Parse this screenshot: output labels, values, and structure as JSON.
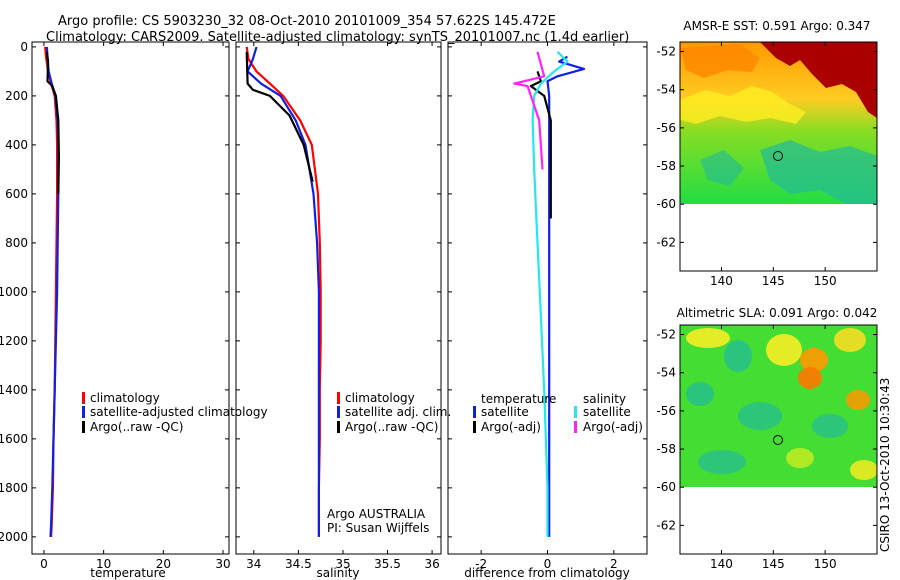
{
  "figure": {
    "title_line1": "Argo profile: CS 5903230_32 08-Oct-2010 20101009_354 57.622S 145.472E",
    "title_line2": "Climatology: CARS2009. Satellite-adjusted climatology: synTS_20101007.nc (1.4d earlier)",
    "side_stamp": "CSIRO 13-Oct-2010 10:30:43",
    "colors": {
      "red": "#ff0000",
      "blue": "#1020e0",
      "black": "#000000",
      "cyan": "#22e8ee",
      "magenta": "#ff22ff",
      "map_dark": "#aa0000",
      "map_orange": "#ff9900",
      "map_yellow": "#ffee22",
      "map_green": "#22dd44",
      "map_teal": "#22bb99"
    }
  },
  "chart_data": [
    {
      "type": "line",
      "id": "temperature",
      "xlabel": "temperature",
      "ylabel": "",
      "xlim": [
        -2,
        31
      ],
      "ylim": [
        2070,
        -20
      ],
      "xticks": [
        0,
        10,
        20,
        30
      ],
      "yticks": [
        0,
        200,
        400,
        600,
        800,
        1000,
        1200,
        1400,
        1600,
        1800,
        2000
      ],
      "series": [
        {
          "name": "climatology",
          "color": "#ff0000",
          "x": [
            0.2,
            0.4,
            0.7,
            1.2,
            1.8,
            2.1,
            2.2,
            2.2,
            2.1,
            2.0,
            1.9,
            1.8,
            1.6,
            1.5,
            1.3,
            1.2
          ],
          "y": [
            0,
            50,
            100,
            150,
            200,
            300,
            400,
            600,
            800,
            1000,
            1200,
            1400,
            1600,
            1800,
            1950,
            2000
          ]
        },
        {
          "name": "satellite-adjusted climatology",
          "color": "#1020e0",
          "x": [
            0.5,
            0.6,
            0.8,
            1.3,
            1.9,
            2.3,
            2.4,
            2.4,
            2.3,
            2.2,
            2.0,
            1.8,
            1.6,
            1.4,
            1.2,
            1.1
          ],
          "y": [
            0,
            50,
            100,
            150,
            200,
            300,
            400,
            600,
            800,
            1000,
            1200,
            1400,
            1600,
            1800,
            1950,
            2000
          ]
        },
        {
          "name": "Argo(..raw -QC)",
          "color": "#000000",
          "x": [
            0.5,
            0.7,
            0.6,
            1.0,
            1.4,
            2.0,
            2.4,
            2.5,
            2.4
          ],
          "y": [
            20,
            60,
            140,
            150,
            160,
            200,
            300,
            450,
            600
          ]
        }
      ],
      "legend": {
        "position": "lower-right",
        "entries": [
          "climatology",
          "satellite-adjusted climatology",
          "Argo(..raw -QC)"
        ]
      }
    },
    {
      "type": "line",
      "id": "salinity",
      "xlabel": "salinity",
      "ylabel": "",
      "xlim": [
        33.8,
        36.1
      ],
      "ylim": [
        2070,
        -20
      ],
      "xticks": [
        34,
        34.5,
        35,
        35.5,
        36
      ],
      "xticklabels": [
        "34",
        "34.5",
        "35",
        "35.5",
        "36"
      ],
      "series": [
        {
          "name": "climatology",
          "color": "#ff0000",
          "x": [
            33.92,
            33.94,
            34.03,
            34.18,
            34.33,
            34.52,
            34.65,
            34.72,
            34.74,
            34.75,
            34.75,
            34.74,
            34.74,
            34.73,
            34.73,
            34.73
          ],
          "y": [
            0,
            50,
            100,
            150,
            200,
            300,
            400,
            600,
            800,
            1000,
            1200,
            1400,
            1600,
            1800,
            1950,
            2000
          ]
        },
        {
          "name": "satellite adj. clim.",
          "color": "#1020e0",
          "x": [
            34.03,
            33.99,
            33.93,
            34.08,
            34.3,
            34.47,
            34.58,
            34.67,
            34.71,
            34.73,
            34.73,
            34.73,
            34.73,
            34.73,
            34.73,
            34.73
          ],
          "y": [
            0,
            50,
            100,
            150,
            200,
            300,
            400,
            600,
            800,
            1000,
            1200,
            1400,
            1600,
            1800,
            1950,
            2000
          ]
        },
        {
          "name": "Argo(..raw -QC)",
          "color": "#000000",
          "x": [
            33.92,
            33.93,
            33.99,
            34.18,
            34.4,
            34.56,
            34.66
          ],
          "y": [
            20,
            150,
            175,
            200,
            280,
            400,
            550
          ]
        }
      ],
      "legend": {
        "position": "lower-right",
        "entries": [
          "climatology",
          "satellite adj. clim.",
          "Argo(..raw -QC)"
        ]
      },
      "annotation": [
        "Argo AUSTRALIA",
        "PI: Susan Wijffels"
      ]
    },
    {
      "type": "line",
      "id": "difference",
      "xlabel": "difference from climatology",
      "ylabel": "",
      "xlim": [
        -3,
        3
      ],
      "ylim": [
        2070,
        -20
      ],
      "xticks": [
        -2,
        0,
        2
      ],
      "xticklabels": [
        "-2",
        "0",
        "2"
      ],
      "series": [
        {
          "name": "temperature satellite",
          "color": "#1020e0",
          "x": [
            0.6,
            0.35,
            1.1,
            0.3,
            0.0,
            0.05,
            0.05,
            0.05,
            0.05,
            0.05,
            0.05,
            0.05,
            0.05
          ],
          "y": [
            40,
            60,
            90,
            120,
            140,
            200,
            400,
            600,
            800,
            1000,
            1400,
            1800,
            2000
          ]
        },
        {
          "name": "temperature Argo(-adj)",
          "color": "#000000",
          "x": [
            -0.3,
            -0.2,
            -0.5,
            -0.1,
            0.1,
            0.1,
            0.1
          ],
          "y": [
            100,
            140,
            160,
            200,
            300,
            500,
            700
          ]
        },
        {
          "name": "salinity satellite",
          "color": "#22e8ee",
          "x": [
            0.3,
            0.6,
            0.2,
            -0.2,
            -0.4,
            -0.45,
            -0.4,
            -0.3,
            -0.2,
            -0.1,
            0.0,
            0.0
          ],
          "y": [
            20,
            60,
            100,
            150,
            200,
            300,
            500,
            800,
            1100,
            1400,
            1800,
            2000
          ]
        },
        {
          "name": "salinity Argo(-adj)",
          "color": "#ff22ff",
          "x": [
            -0.3,
            -0.1,
            -1.0,
            -0.6,
            -0.25,
            -0.15
          ],
          "y": [
            20,
            120,
            150,
            160,
            300,
            500
          ]
        }
      ],
      "legend": {
        "position": "lower-center",
        "headers": [
          "temperature",
          "salinity"
        ],
        "entries": [
          "satellite",
          "Argo(-adj)",
          "satellite",
          "Argo(-adj)"
        ]
      }
    },
    {
      "type": "heatmap",
      "id": "sst_map",
      "title": "AMSR-E SST: 0.591 Argo: 0.347",
      "xlim": [
        136,
        155
      ],
      "ylim": [
        -63.5,
        -51.5
      ],
      "xticks": [
        140,
        145,
        150
      ],
      "yticks": [
        -52,
        -54,
        -56,
        -58,
        -60,
        -62
      ],
      "argo_position": [
        145.472,
        -57.622
      ]
    },
    {
      "type": "heatmap",
      "id": "sla_map",
      "title": "Altimetric SLA: 0.091 Argo: 0.042",
      "xlim": [
        136,
        155
      ],
      "ylim": [
        -63.5,
        -51.5
      ],
      "xticks": [
        140,
        145,
        150
      ],
      "yticks": [
        -52,
        -54,
        -56,
        -58,
        -60,
        -62
      ],
      "argo_position": [
        145.472,
        -57.622
      ]
    }
  ]
}
